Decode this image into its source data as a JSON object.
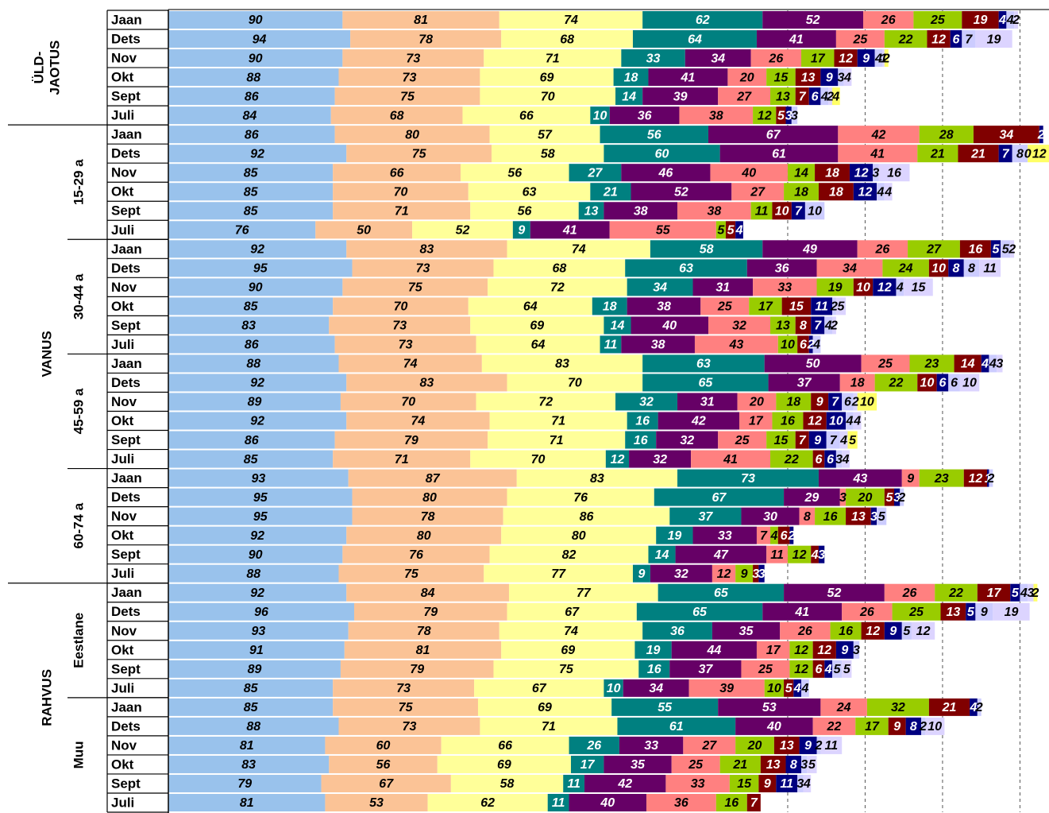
{
  "chart_data": {
    "type": "bar",
    "orientation": "horizontal",
    "stacked": true,
    "categories": [
      "Jaan",
      "Dets",
      "Nov",
      "Okt",
      "Sept",
      "Juli",
      "Jaan",
      "Dets",
      "Nov",
      "Okt",
      "Sept",
      "Juli",
      "Jaan",
      "Dets",
      "Nov",
      "Okt",
      "Sept",
      "Juli",
      "Jaan",
      "Dets",
      "Nov",
      "Okt",
      "Sept",
      "Juli",
      "Jaan",
      "Dets",
      "Nov",
      "Okt",
      "Sept",
      "Juli",
      "Jaan",
      "Dets",
      "Nov",
      "Okt",
      "Sept",
      "Juli",
      "Jaan",
      "Dets",
      "Nov",
      "Okt",
      "Sept",
      "Juli"
    ],
    "groups": [
      {
        "label": [
          "ÜLD-",
          "JAOTUS"
        ],
        "rows": 6
      },
      {
        "label": [
          "VANUS"
        ],
        "subgroups": [
          {
            "label": "15-29 a",
            "rows": 6
          },
          {
            "label": "30-44 a",
            "rows": 6
          },
          {
            "label": "45-59 a",
            "rows": 6
          },
          {
            "label": "60-74 a",
            "rows": 6
          }
        ]
      },
      {
        "label": [
          "RAHVUS"
        ],
        "subgroups": [
          {
            "label": "Eestlane",
            "rows": 6
          },
          {
            "label": "Muu",
            "rows": 6
          }
        ]
      }
    ],
    "series": [
      {
        "color": "#99c2ec",
        "label_color": "#000000",
        "values": [
          90,
          94,
          90,
          88,
          86,
          84,
          86,
          92,
          85,
          85,
          85,
          76,
          92,
          95,
          90,
          85,
          83,
          86,
          88,
          92,
          89,
          92,
          86,
          85,
          93,
          95,
          95,
          92,
          90,
          88,
          92,
          96,
          93,
          91,
          89,
          85,
          85,
          88,
          81,
          83,
          79,
          81
        ]
      },
      {
        "color": "#fbc396",
        "label_color": "#000000",
        "values": [
          81,
          78,
          73,
          73,
          75,
          68,
          80,
          75,
          66,
          70,
          71,
          50,
          83,
          73,
          75,
          70,
          73,
          73,
          74,
          83,
          70,
          74,
          79,
          71,
          87,
          80,
          78,
          80,
          76,
          75,
          84,
          79,
          78,
          81,
          79,
          73,
          75,
          73,
          60,
          56,
          67,
          53
        ]
      },
      {
        "color": "#ffff99",
        "label_color": "#000000",
        "values": [
          74,
          68,
          71,
          69,
          70,
          66,
          57,
          58,
          56,
          63,
          56,
          52,
          74,
          68,
          72,
          64,
          69,
          64,
          83,
          70,
          72,
          71,
          71,
          70,
          83,
          76,
          86,
          80,
          82,
          77,
          77,
          67,
          74,
          69,
          75,
          67,
          69,
          71,
          66,
          69,
          58,
          62
        ]
      },
      {
        "color": "#008080",
        "label_color": "#ffffff",
        "values": [
          62,
          64,
          33,
          18,
          14,
          10,
          56,
          60,
          27,
          21,
          13,
          9,
          58,
          63,
          34,
          18,
          14,
          11,
          63,
          65,
          32,
          16,
          16,
          12,
          73,
          67,
          37,
          19,
          14,
          9,
          65,
          65,
          36,
          19,
          16,
          10,
          55,
          61,
          26,
          17,
          11,
          11
        ]
      },
      {
        "color": "#660066",
        "label_color": "#ffffff",
        "values": [
          52,
          41,
          34,
          41,
          39,
          36,
          67,
          61,
          46,
          52,
          38,
          41,
          49,
          36,
          31,
          38,
          40,
          38,
          50,
          37,
          31,
          42,
          32,
          32,
          43,
          29,
          30,
          33,
          47,
          32,
          52,
          41,
          35,
          44,
          37,
          34,
          53,
          40,
          33,
          35,
          42,
          40
        ]
      },
      {
        "color": "#ff8080",
        "label_color": "#000000",
        "values": [
          26,
          25,
          26,
          20,
          27,
          38,
          42,
          41,
          40,
          27,
          38,
          55,
          26,
          34,
          33,
          25,
          32,
          43,
          25,
          18,
          20,
          17,
          25,
          41,
          9,
          3,
          8,
          7,
          11,
          12,
          26,
          26,
          26,
          17,
          25,
          39,
          24,
          22,
          27,
          25,
          33,
          36
        ]
      },
      {
        "color": "#99cc00",
        "label_color": "#000000",
        "values": [
          25,
          22,
          17,
          15,
          13,
          12,
          28,
          21,
          14,
          18,
          11,
          5,
          27,
          24,
          19,
          17,
          13,
          10,
          23,
          22,
          18,
          16,
          15,
          22,
          23,
          20,
          16,
          4,
          12,
          9,
          22,
          25,
          16,
          12,
          12,
          10,
          32,
          17,
          20,
          21,
          15,
          16
        ]
      },
      {
        "color": "#800000",
        "label_color": "#ffffff",
        "values": [
          19,
          12,
          12,
          13,
          7,
          5,
          34,
          21,
          18,
          18,
          10,
          5,
          16,
          10,
          10,
          15,
          8,
          6,
          14,
          10,
          9,
          12,
          7,
          6,
          12,
          5,
          13,
          6,
          4,
          3,
          17,
          13,
          12,
          12,
          6,
          5,
          21,
          9,
          13,
          13,
          9,
          7
        ]
      },
      {
        "color": "#000080",
        "label_color": "#ffffff",
        "values": [
          4,
          6,
          9,
          9,
          6,
          3,
          2,
          7,
          12,
          12,
          7,
          4,
          5,
          8,
          12,
          11,
          7,
          2,
          4,
          6,
          7,
          10,
          9,
          6,
          1,
          3,
          3,
          2,
          3,
          3,
          5,
          5,
          9,
          9,
          4,
          4,
          4,
          8,
          9,
          8,
          11,
          null
        ]
      },
      {
        "color": "#ccccff",
        "label_color": "#000000",
        "values": [
          4,
          7,
          4,
          3,
          4,
          3,
          null,
          8,
          3,
          4,
          10,
          null,
          5,
          8,
          4,
          2,
          4,
          4,
          4,
          6,
          6,
          4,
          7,
          3,
          2,
          2,
          5,
          null,
          null,
          null,
          4,
          9,
          5,
          3,
          5,
          4,
          2,
          2,
          2,
          3,
          3,
          null
        ]
      },
      {
        "color": "#dcd4ff",
        "label_color": "#000000",
        "values": [
          2,
          19,
          1,
          4,
          2,
          null,
          null,
          0,
          16,
          4,
          null,
          null,
          2,
          11,
          15,
          5,
          2,
          null,
          3,
          10,
          2,
          4,
          4,
          4,
          null,
          null,
          null,
          null,
          null,
          null,
          3,
          19,
          12,
          null,
          5,
          null,
          null,
          10,
          11,
          5,
          4,
          null
        ]
      },
      {
        "color": "#ffff66",
        "label_color": "#000000",
        "values": [
          null,
          null,
          2,
          null,
          4,
          null,
          null,
          12,
          null,
          null,
          null,
          null,
          null,
          null,
          null,
          null,
          null,
          null,
          null,
          null,
          10,
          null,
          5,
          null,
          null,
          null,
          null,
          null,
          null,
          null,
          2,
          null,
          null,
          null,
          null,
          null,
          null,
          null,
          null,
          null,
          null,
          null
        ]
      }
    ],
    "xlim": [
      0,
      455
    ],
    "xgrid": [
      320,
      360,
      400,
      440
    ]
  }
}
